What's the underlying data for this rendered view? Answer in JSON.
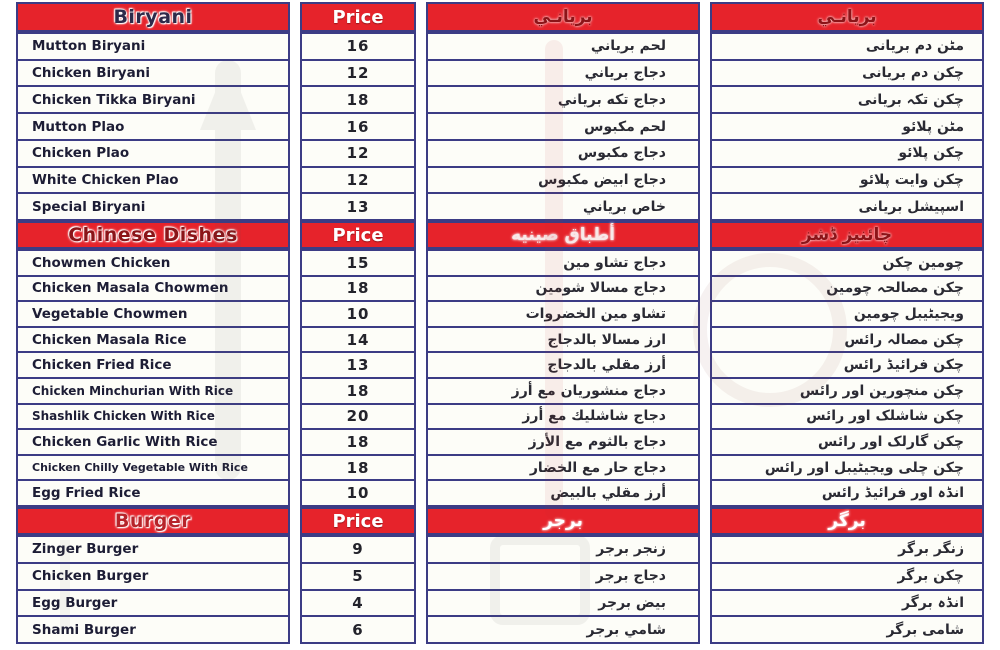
{
  "menu": {
    "palette": {
      "header_bg": "#e6232b",
      "border": "#3c3c85",
      "item_text": "#1d1d35",
      "price_header_text": "#ffffff"
    },
    "sections": [
      {
        "name": "biryani",
        "headers": {
          "en": {
            "label": "Biryani",
            "color": "#2e2a4a"
          },
          "price": {
            "label": "Price",
            "color": "#ffffff"
          },
          "ar": {
            "label": "بريانـي",
            "color": "#8c1418"
          },
          "ur": {
            "label": "بريانـي",
            "color": "#8c1418"
          }
        },
        "items": [
          {
            "en": "Mutton Biryani",
            "price": "16",
            "ar": "لحم برياني",
            "ur": "مٹن دم بریانی"
          },
          {
            "en": "Chicken Biryani",
            "price": "12",
            "ar": "دجاج برياني",
            "ur": "چکن دم بریانی"
          },
          {
            "en": "Chicken Tikka Biryani",
            "price": "18",
            "ar": "دجاج تكه برياني",
            "ur": "چکن تکہ بریانی"
          },
          {
            "en": "Mutton Plao",
            "price": "16",
            "ar": "لحم مكبوس",
            "ur": "مٹن پلائو"
          },
          {
            "en": "Chicken Plao",
            "price": "12",
            "ar": "دجاج مكبوس",
            "ur": "چکن پلائو"
          },
          {
            "en": "White Chicken Plao",
            "price": "12",
            "ar": "دجاج ابيض مكبوس",
            "ur": "چکن وایت پلائو"
          },
          {
            "en": "Special Biryani",
            "price": "13",
            "ar": "خاص برياني",
            "ur": "اسپیشل بریانی"
          }
        ]
      },
      {
        "name": "chinese-dishes",
        "headers": {
          "en": {
            "label": "Chinese Dishes",
            "color": "#8c1418"
          },
          "price": {
            "label": "Price",
            "color": "#ffffff"
          },
          "ar": {
            "label": "أطباق صينيه",
            "color": "#f8e9e9"
          },
          "ur": {
            "label": "چائنیز ڈشز",
            "color": "#8c1418"
          }
        },
        "items": [
          {
            "en": "Chowmen Chicken",
            "price": "15",
            "ar": "دجاج تشاو مين",
            "ur": "چومین چکن"
          },
          {
            "en": "Chicken Masala Chowmen",
            "price": "18",
            "ar": "دجاج مسالا شومين",
            "ur": "چکن مصالحہ چومین"
          },
          {
            "en": "Vegetable Chowmen",
            "price": "10",
            "ar": "تشاو مين الخضروات",
            "ur": "ویجیٹیبل چومین"
          },
          {
            "en": "Chicken Masala Rice",
            "price": "14",
            "ar": "ارز مسالا بالدجاج",
            "ur": "چکن مصالہ رائس"
          },
          {
            "en": "Chicken Fried Rice",
            "price": "13",
            "ar": "أرز مقلي بالدجاج",
            "ur": "چکن فرائیڈ رائس"
          },
          {
            "en": "Chicken Minchurian With Rice",
            "price": "18",
            "ar": "دجاج منشوريان مع أرز",
            "ur": "چکن منچورین اور رائس"
          },
          {
            "en": "Shashlik Chicken With Rice",
            "price": "20",
            "ar": "دجاج شاشليك مع أرز",
            "ur": "چکن شاشلک اور رائس"
          },
          {
            "en": "Chicken Garlic With Rice",
            "price": "18",
            "ar": "دجاج بالثوم مع الأرز",
            "ur": "چکن گارلک اور رائس"
          },
          {
            "en": "Chicken Chilly Vegetable With Rice",
            "price": "18",
            "ar": "دجاج حار مع الخضار",
            "ur": "چکن چلی ویجیٹیبل اور رائس"
          },
          {
            "en": "Egg Fried Rice",
            "price": "10",
            "ar": "أرز مقلي بالبيض",
            "ur": "انڈہ اور فرائیڈ رائس"
          }
        ]
      },
      {
        "name": "burger",
        "headers": {
          "en": {
            "label": "Burger",
            "color": "#b7242a"
          },
          "price": {
            "label": "Price",
            "color": "#ffffff"
          },
          "ar": {
            "label": "برجر",
            "color": "#ffffff"
          },
          "ur": {
            "label": "برگر",
            "color": "#ffffff"
          }
        },
        "items": [
          {
            "en": "Zinger Burger",
            "price": "9",
            "ar": "زنجر برجر",
            "ur": "زنگر برگر"
          },
          {
            "en": "Chicken Burger",
            "price": "5",
            "ar": "دجاج برجر",
            "ur": "چکن برگر"
          },
          {
            "en": "Egg Burger",
            "price": "4",
            "ar": "بيض برجر",
            "ur": "انڈہ برگر"
          },
          {
            "en": "Shami Burger",
            "price": "6",
            "ar": "شامي برجر",
            "ur": "شامی برگر"
          }
        ]
      }
    ]
  }
}
